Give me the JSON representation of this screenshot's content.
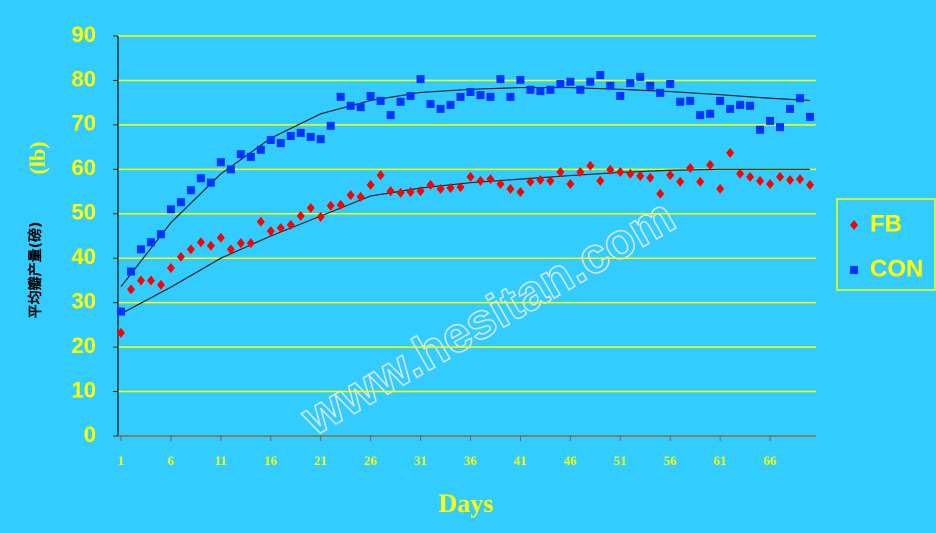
{
  "chart_data": {
    "type": "scatter",
    "x_label": "Days",
    "y_label": "平均瓣产量(磅)",
    "y_label_unit": "(lb)",
    "watermark": "www.hesitan.com",
    "x": [
      1,
      2,
      3,
      4,
      5,
      6,
      7,
      8,
      9,
      10,
      11,
      12,
      13,
      14,
      15,
      16,
      17,
      18,
      19,
      20,
      21,
      22,
      23,
      24,
      25,
      26,
      27,
      28,
      29,
      30,
      31,
      32,
      33,
      34,
      35,
      36,
      37,
      38,
      39,
      40,
      41,
      42,
      43,
      44,
      45,
      46,
      47,
      48,
      49,
      50,
      51,
      52,
      53,
      54,
      55,
      56,
      57,
      58,
      59,
      60,
      61,
      62,
      63,
      64,
      65,
      66,
      67,
      68,
      69,
      70
    ],
    "xlim": [
      0.7,
      70.6
    ],
    "xticks": [
      1,
      6,
      11,
      16,
      21,
      26,
      31,
      36,
      41,
      46,
      51,
      56,
      61,
      66
    ],
    "ylim": [
      0,
      90
    ],
    "yticks": [
      0,
      10,
      20,
      30,
      40,
      50,
      60,
      70,
      80,
      90
    ],
    "grid": true,
    "legend": "right",
    "trend_x": [
      1,
      6,
      11,
      16,
      21,
      26,
      31,
      36,
      41,
      46,
      51,
      56,
      61,
      66,
      70
    ],
    "series": [
      {
        "name": "FB",
        "color": "#ff0000",
        "marker": "diamond",
        "values": [
          23.2,
          33,
          35,
          35,
          34,
          37.8,
          40.3,
          42,
          43.6,
          42.8,
          44.6,
          42,
          43.4,
          43.4,
          48.2,
          46.1,
          46.8,
          47.5,
          49.5,
          51.3,
          49.3,
          51.8,
          52,
          54.2,
          53.8,
          56.5,
          58.7,
          55.1,
          54.7,
          54.9,
          55.1,
          56.5,
          55.6,
          55.8,
          56,
          58.3,
          57.4,
          57.8,
          56.7,
          55.6,
          54.9,
          57.2,
          57.6,
          57.4,
          59.4,
          56.7,
          59.4,
          60.8,
          57.4,
          59.9,
          59.4,
          59,
          58.5,
          58.1,
          54.5,
          58.7,
          57.2,
          60.3,
          57.2,
          61,
          55.6,
          63.7,
          59,
          58.3,
          57.4,
          56.7,
          58.3,
          57.6,
          57.8,
          56.5
        ],
        "trend": [
          27.5,
          33.5,
          40,
          45,
          49.5,
          54,
          55.8,
          57,
          57.8,
          58.6,
          59.3,
          59.8,
          60,
          60,
          60
        ]
      },
      {
        "name": "CON",
        "color": "#0033ff",
        "marker": "square",
        "values": [
          28,
          37,
          42,
          43.6,
          45.4,
          51,
          52.6,
          55.3,
          58,
          57,
          61.6,
          60,
          63.4,
          62.8,
          64.4,
          66.6,
          65.9,
          67.5,
          68.2,
          67.3,
          66.8,
          69.8,
          76.3,
          74.3,
          74,
          76.5,
          75.4,
          72.2,
          75.2,
          76.5,
          80.3,
          74.7,
          73.6,
          74.5,
          76.3,
          77.4,
          76.7,
          76.3,
          80.3,
          76.3,
          80.1,
          77.9,
          77.6,
          77.9,
          79.2,
          79.7,
          77.9,
          79.7,
          81.2,
          78.8,
          76.5,
          79.4,
          80.8,
          78.8,
          77.2,
          79.2,
          75.2,
          75.4,
          72.2,
          72.5,
          75.4,
          73.6,
          74.5,
          74.3,
          68.9,
          70.9,
          69.5,
          73.6,
          76,
          71.8
        ],
        "trend": [
          33.6,
          48,
          59,
          67,
          72.5,
          75.5,
          77.3,
          78,
          78.4,
          78.4,
          78,
          77.5,
          76.8,
          76,
          75.5
        ]
      }
    ]
  }
}
